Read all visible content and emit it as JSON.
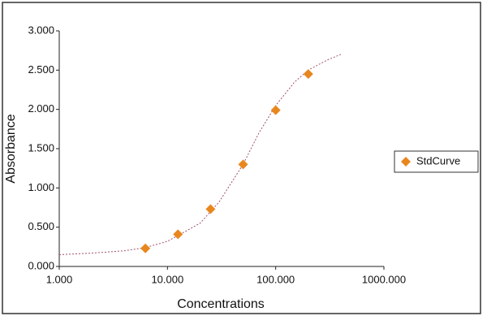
{
  "chart_data": {
    "type": "scatter",
    "x_label": "Concentrations",
    "y_label": "Absorbance",
    "xscale": "log",
    "legend": "right",
    "xlim": [
      1,
      1000
    ],
    "xticks": [
      {
        "value": 1,
        "label": "1.000"
      },
      {
        "value": 10,
        "label": "10.000"
      },
      {
        "value": 100,
        "label": "100.000"
      },
      {
        "value": 1000,
        "label": "1000.000"
      }
    ],
    "ylim": [
      0,
      3
    ],
    "yticks": [
      {
        "value": 0,
        "label": "0.000"
      },
      {
        "value": 0.5,
        "label": "0.500"
      },
      {
        "value": 1,
        "label": "1.000"
      },
      {
        "value": 1.5,
        "label": "1.500"
      },
      {
        "value": 2,
        "label": "2.000"
      },
      {
        "value": 2.5,
        "label": "2.500"
      },
      {
        "value": 3,
        "label": "3.000"
      }
    ],
    "series": [
      {
        "name": "StdCurve",
        "color": "#e8871e",
        "x": [
          6.25,
          12.5,
          25,
          50,
          100,
          200
        ],
        "values": [
          0.23,
          0.41,
          0.73,
          1.3,
          1.99,
          2.45
        ]
      }
    ],
    "fit": {
      "color": "#a0506e",
      "x": [
        1,
        2,
        4,
        6.25,
        10,
        20,
        30,
        50,
        70,
        100,
        150,
        200,
        300,
        400
      ],
      "values": [
        0.15,
        0.17,
        0.2,
        0.24,
        0.32,
        0.55,
        0.82,
        1.3,
        1.7,
        2.05,
        2.35,
        2.5,
        2.63,
        2.7
      ]
    }
  }
}
